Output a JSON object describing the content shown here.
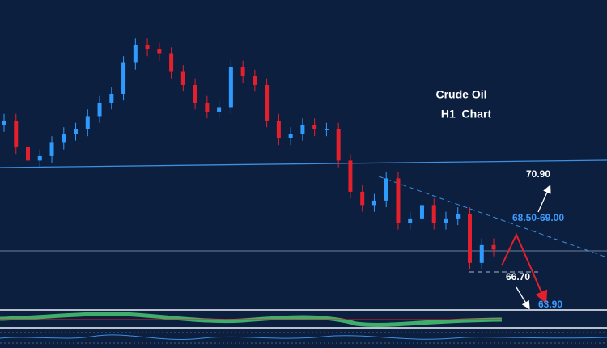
{
  "chart_data": {
    "type": "candlestick",
    "title": "Crude Oil",
    "subtitle": "H1  Chart",
    "annotations": [
      "70.90",
      "68.50-69.00",
      "66.70",
      "63.90"
    ],
    "up_color": "#2f9bff",
    "down_color": "#e3202c",
    "ylim": [
      65.86,
      72.81
    ],
    "open": [
      70.0,
      70.1,
      69.5,
      69.2,
      69.3,
      69.6,
      69.8,
      69.9,
      70.2,
      70.5,
      70.7,
      71.4,
      71.8,
      71.7,
      71.6,
      71.2,
      70.9,
      70.5,
      70.3,
      70.4,
      71.3,
      71.1,
      70.9,
      70.1,
      69.7,
      69.8,
      70.0,
      69.9,
      69.9,
      69.2,
      68.5,
      68.2,
      68.3,
      68.8,
      67.8,
      67.9,
      68.2,
      67.8,
      67.9,
      68.0,
      66.9,
      67.3
    ],
    "high": [
      70.25,
      70.25,
      69.65,
      69.45,
      69.75,
      69.95,
      70.05,
      70.35,
      70.65,
      70.85,
      71.55,
      71.95,
      71.95,
      71.85,
      71.75,
      71.35,
      71.05,
      70.65,
      70.55,
      71.45,
      71.45,
      71.25,
      71.05,
      70.25,
      69.95,
      70.15,
      70.15,
      70.05,
      70.05,
      69.35,
      68.65,
      68.45,
      68.95,
      68.95,
      68.05,
      68.35,
      68.35,
      68.05,
      68.15,
      68.15,
      67.45,
      67.45
    ],
    "low": [
      69.85,
      69.35,
      69.05,
      69.05,
      69.15,
      69.45,
      69.65,
      69.75,
      70.05,
      70.35,
      70.55,
      71.25,
      71.55,
      71.45,
      71.05,
      70.75,
      70.35,
      70.15,
      70.15,
      70.25,
      70.95,
      70.75,
      69.95,
      69.55,
      69.55,
      69.65,
      69.75,
      69.75,
      69.05,
      68.35,
      68.05,
      68.05,
      68.15,
      67.65,
      67.65,
      67.75,
      67.65,
      67.65,
      67.75,
      66.75,
      66.75,
      67.05
    ],
    "close": [
      70.1,
      69.5,
      69.2,
      69.3,
      69.6,
      69.8,
      69.9,
      70.2,
      70.5,
      70.7,
      71.4,
      71.8,
      71.7,
      71.6,
      71.2,
      70.9,
      70.5,
      70.3,
      70.4,
      71.3,
      71.1,
      70.9,
      70.1,
      69.7,
      69.8,
      70.0,
      69.9,
      69.9,
      69.2,
      68.5,
      68.2,
      68.3,
      68.8,
      67.8,
      67.9,
      68.2,
      67.8,
      67.9,
      68.0,
      66.9,
      67.3,
      67.2
    ]
  }
}
